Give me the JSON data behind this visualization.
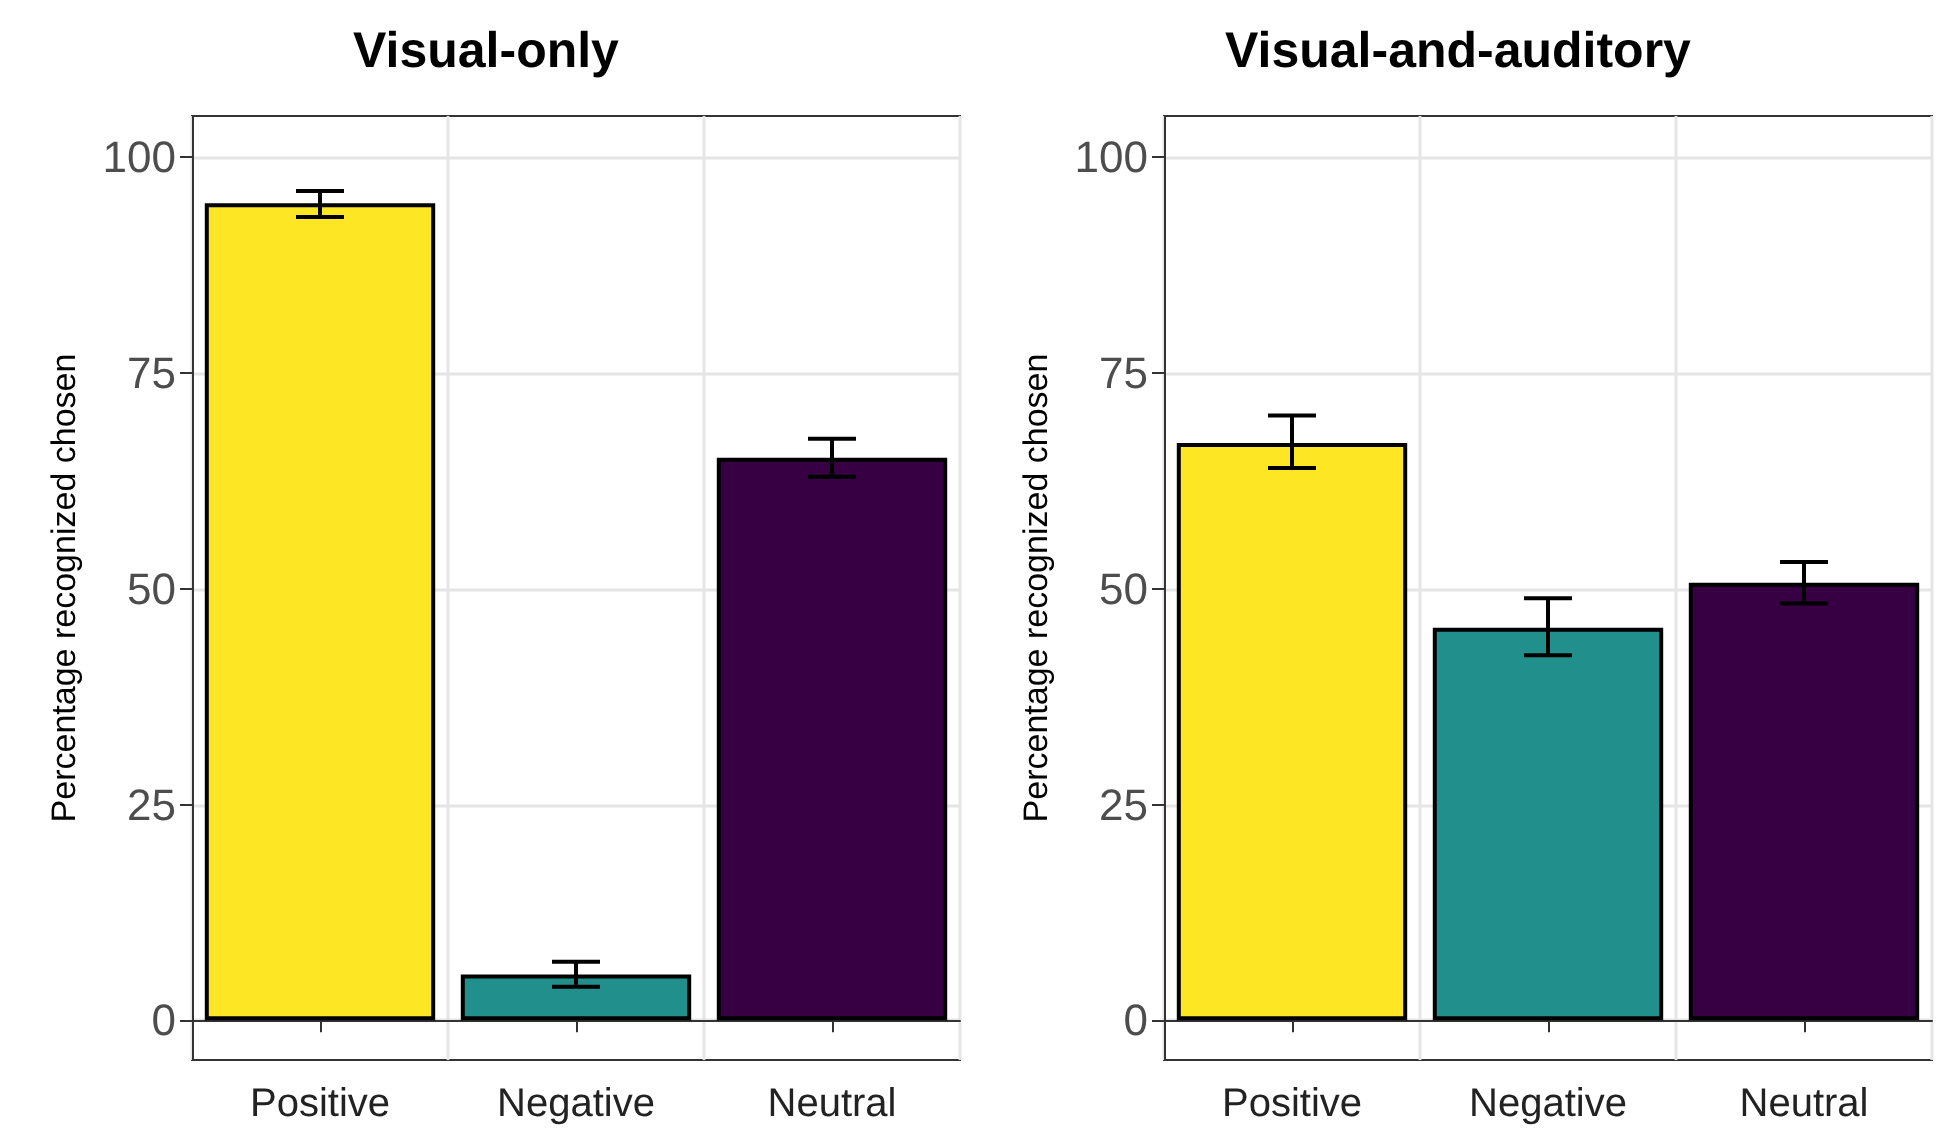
{
  "chart_data": [
    {
      "type": "bar",
      "title": "Visual-only",
      "ylabel": "Percentage recognized chosen",
      "categories": [
        "Positive",
        "Negative",
        "Neutral"
      ],
      "values": [
        94.7,
        5.3,
        65.2
      ],
      "colors": [
        "#fde725",
        "#21908c",
        "#360043"
      ],
      "errors": [
        [
          93.1,
          96.1
        ],
        [
          3.9,
          6.8
        ],
        [
          63.0,
          67.4
        ]
      ],
      "ylim": [
        -4.6,
        104.8
      ],
      "yticks": [
        0,
        25,
        50,
        75,
        100
      ],
      "grid": true
    },
    {
      "type": "bar",
      "title": "Visual-and-auditory",
      "ylabel": "Percentage recognized chosen",
      "categories": [
        "Positive",
        "Negative",
        "Neutral"
      ],
      "values": [
        66.9,
        45.5,
        50.7
      ],
      "colors": [
        "#fde725",
        "#21908c",
        "#360043"
      ],
      "errors": [
        [
          64.0,
          70.1
        ],
        [
          42.3,
          48.9
        ],
        [
          48.3,
          53.1
        ]
      ],
      "ylim": [
        -4.6,
        104.8
      ],
      "yticks": [
        0,
        25,
        50,
        75,
        100
      ],
      "grid": true
    }
  ]
}
